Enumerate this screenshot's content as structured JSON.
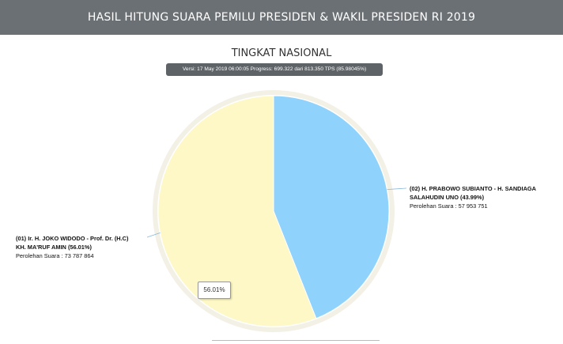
{
  "header": {
    "title": "HASIL HITUNG SUARA PEMILU PRESIDEN & WAKIL PRESIDEN RI 2019"
  },
  "subtitle": "TINGKAT NASIONAL",
  "version": "Versi: 17 May 2019 06:00:05 Progress: 699.322 dari 813.350 TPS (85.98045%)",
  "tooltip": "56.01%",
  "chart_data": {
    "type": "pie",
    "slices": [
      {
        "label": "(01) Ir. H. JOKO WIDODO - Prof. Dr. (H.C) KH. MA'RUF AMIN (56.01%)",
        "label_lines": [
          "(01) Ir. H. JOKO WIDODO - Prof. Dr. (H.C)",
          "KH. MA'RUF AMIN (56.01%)"
        ],
        "votes_text": "Perolehan Suara : 73 787 864",
        "value": 56.01,
        "color": "#fdf8c5"
      },
      {
        "label": "(02) H. PRABOWO SUBIANTO - H. SANDIAGA SALAHUDIN UNO (43.99%)",
        "label_lines": [
          "(02) H. PRABOWO SUBIANTO - H. SANDIAGA",
          "SALAHUDIN UNO (43.99%)"
        ],
        "votes_text": "Perolehan Suara : 57 953 751",
        "value": 43.99,
        "color": "#8fd3fd"
      }
    ]
  }
}
